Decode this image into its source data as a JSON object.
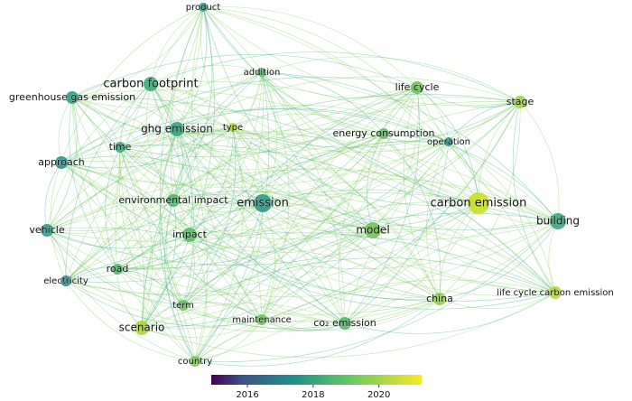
{
  "nodes": [
    {
      "label": "product"
    },
    {
      "label": "carbon footprint"
    },
    {
      "label": "greenhouse gas emission"
    },
    {
      "label": "addition"
    },
    {
      "label": "life cycle"
    },
    {
      "label": "stage"
    },
    {
      "label": "ghg emission"
    },
    {
      "label": "type"
    },
    {
      "label": "time"
    },
    {
      "label": "energy consumption"
    },
    {
      "label": "operation"
    },
    {
      "label": "approach"
    },
    {
      "label": "environmental impact"
    },
    {
      "label": "emission"
    },
    {
      "label": "carbon emission"
    },
    {
      "label": "building"
    },
    {
      "label": "vehicle"
    },
    {
      "label": "impact"
    },
    {
      "label": "model"
    },
    {
      "label": "road"
    },
    {
      "label": "electricity"
    },
    {
      "label": "china"
    },
    {
      "label": "life cycle carbon emission"
    },
    {
      "label": "term"
    },
    {
      "label": "scenario"
    },
    {
      "label": "maintenance"
    },
    {
      "label": "co₂ emission"
    },
    {
      "label": "country"
    }
  ],
  "colorbar": {
    "lim": [
      2014.9,
      2021.3
    ],
    "ticks": [
      2016,
      2018,
      2020
    ]
  }
}
